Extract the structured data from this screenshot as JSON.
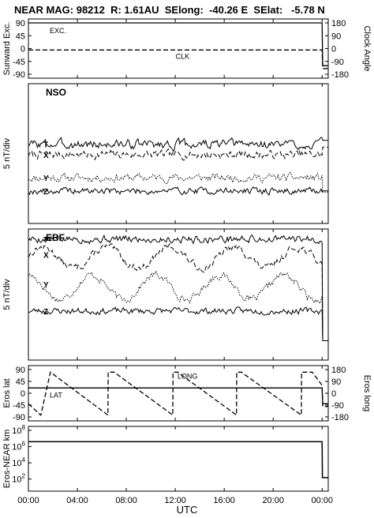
{
  "header": "NEAR MAG: 98212  R: 1.61AU  SElong:  -40.26 E  SElat:   -5.78 N",
  "xaxis": {
    "label": "UTC",
    "ticks": [
      "00:00",
      "04:00",
      "08:00",
      "12:00",
      "16:00",
      "20:00",
      "00:00"
    ],
    "tick_hours": [
      0,
      4,
      8,
      12,
      16,
      20,
      24
    ],
    "range_hours": [
      0,
      24.5
    ]
  },
  "chart_data": [
    {
      "type": "line",
      "panel": "sunward",
      "ylabel_left": "Sunward Exc.",
      "ylabel_right": "Clock Angle",
      "left_ticks": [
        "90",
        "45",
        "0",
        "-45",
        "-90"
      ],
      "right_ticks": [
        "180",
        "90",
        "0",
        "-90",
        "-180"
      ],
      "ylim": [
        -90,
        90
      ],
      "series": [
        {
          "name": "EXC.",
          "style": "solid",
          "x": [
            0,
            24.0,
            24.05,
            24.5
          ],
          "y": [
            90,
            90,
            -60,
            -60
          ]
        },
        {
          "name": "CLK",
          "style": "dashed",
          "x": [
            0,
            24.0,
            24.05,
            24.5
          ],
          "y": [
            -5,
            -5,
            -70,
            -70
          ]
        }
      ]
    },
    {
      "type": "line",
      "panel": "NSO",
      "title": "NSO",
      "ylabel_left": "5 nT/div",
      "series": [
        {
          "name": "T",
          "style": "solid",
          "base": 0.85,
          "amp": 0.35,
          "seed": 3,
          "end": 1.2
        },
        {
          "name": "X",
          "style": "dashed",
          "base": -0.1,
          "amp": 0.3,
          "seed": 7,
          "end": 0.6
        },
        {
          "name": "Y",
          "style": "dotted",
          "base": -2.2,
          "amp": 0.3,
          "seed": 11,
          "end": -3.5
        },
        {
          "name": "Z",
          "style": "solid",
          "base": -3.4,
          "amp": 0.25,
          "seed": 19,
          "end": -3.4
        }
      ]
    },
    {
      "type": "line",
      "panel": "EBF",
      "title": "EBF",
      "ylabel_left": "5 nT/div",
      "series": [
        {
          "name": "T",
          "style": "solid",
          "base": 5.4,
          "amp": 0.3,
          "seed": 5,
          "end": -4.5
        },
        {
          "name": "X",
          "style": "dashed",
          "base": 3.9,
          "amp": 0.3,
          "seed": 13,
          "end": -4.5
        },
        {
          "name": "Y",
          "style": "dotted",
          "base": 1.0,
          "amp": 0.3,
          "seed": 17,
          "end": -4.5
        },
        {
          "name": "Z",
          "style": "solid",
          "base": -1.6,
          "amp": 0.25,
          "seed": 23,
          "end": -4.5
        }
      ]
    },
    {
      "type": "line",
      "panel": "eros",
      "ylabel_left": "Eros lat",
      "ylabel_right": "Eros long",
      "left_ticks": [
        "90",
        "45",
        "0",
        "-45",
        "-90"
      ],
      "right_ticks": [
        "180",
        "90",
        "0",
        "-90",
        "-180"
      ],
      "ylim": [
        -90,
        90
      ],
      "series": [
        {
          "name": "LAT",
          "style": "solid",
          "x": [
            0,
            24.0,
            24.05,
            24.5
          ],
          "y": [
            20,
            20,
            -40,
            -40
          ]
        },
        {
          "name": "LONG",
          "style": "dashed",
          "x": [
            0,
            1.0,
            1.02,
            1.8,
            6.5,
            6.52,
            7.0,
            11.8,
            11.82,
            12.2,
            17.0,
            17.02,
            17.4,
            22.3,
            22.32,
            23.2,
            24.0,
            24.05,
            24.5
          ],
          "y": [
            -40,
            -83,
            -83,
            80,
            -83,
            80,
            80,
            -83,
            80,
            80,
            -83,
            80,
            80,
            -83,
            80,
            80,
            30,
            -50,
            -50
          ]
        }
      ]
    },
    {
      "type": "line",
      "panel": "distance",
      "ylabel_left": "Eros-NEAR km",
      "yscale": "log",
      "ylim": [
        10,
        100000000
      ],
      "left_ticks": [
        "10^8",
        "10^6",
        "10^4",
        "10^2"
      ],
      "series": [
        {
          "name": "",
          "style": "solid",
          "x": [
            0,
            24.0,
            24.02,
            24.5
          ],
          "y": [
            4000000,
            4000000,
            150,
            150
          ]
        }
      ]
    }
  ]
}
